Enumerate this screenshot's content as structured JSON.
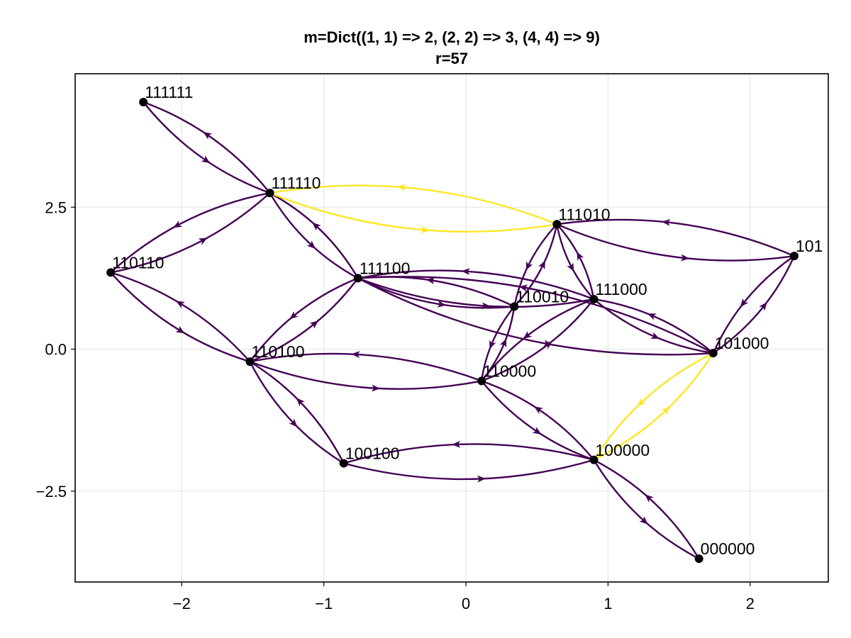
{
  "chart_data": {
    "type": "network",
    "title": "m=Dict((1, 1) => 2, (2, 2) => 3, (4, 4) => 9)",
    "subtitle": "r=57",
    "xlabel": "",
    "ylabel": "",
    "xlim": [
      -2.75,
      2.55
    ],
    "ylim": [
      -4.1,
      4.85
    ],
    "x_ticks": [
      -2,
      -1,
      0,
      1,
      2
    ],
    "x_tick_labels": [
      "−2",
      "−1",
      "0",
      "1",
      "2"
    ],
    "y_ticks": [
      -2.5,
      0.0,
      2.5
    ],
    "y_tick_labels": [
      "−2.5",
      "0.0",
      "2.5"
    ],
    "grid": true,
    "colors": {
      "low": "#440154",
      "high": "#fde725",
      "node": "#000000",
      "grid": "#e6e6e6"
    },
    "nodes": [
      {
        "id": "111111",
        "label": "111111",
        "x": -2.27,
        "y": 4.35
      },
      {
        "id": "111110",
        "label": "111110",
        "x": -1.38,
        "y": 2.75
      },
      {
        "id": "110110",
        "label": "110110",
        "x": -2.5,
        "y": 1.35
      },
      {
        "id": "111100",
        "label": "111100",
        "x": -0.76,
        "y": 1.25
      },
      {
        "id": "110100",
        "label": "110100",
        "x": -1.52,
        "y": -0.22
      },
      {
        "id": "100100",
        "label": "100100",
        "x": -0.86,
        "y": -2.01
      },
      {
        "id": "111010",
        "label": "111010",
        "x": 0.64,
        "y": 2.2
      },
      {
        "id": "110010",
        "label": "110010",
        "x": 0.34,
        "y": 0.75
      },
      {
        "id": "111000",
        "label": "111000",
        "x": 0.9,
        "y": 0.88
      },
      {
        "id": "110000",
        "label": "110000",
        "x": 0.11,
        "y": -0.56
      },
      {
        "id": "101010",
        "label": "101",
        "x": 2.31,
        "y": 1.64
      },
      {
        "id": "101000",
        "label": "101000",
        "x": 1.74,
        "y": -0.07
      },
      {
        "id": "100000",
        "label": "100000",
        "x": 0.9,
        "y": -1.95
      },
      {
        "id": "000000",
        "label": "000000",
        "x": 1.64,
        "y": -3.69
      }
    ],
    "edges": [
      {
        "a": "111111",
        "b": "111110",
        "weight": 0
      },
      {
        "a": "111110",
        "b": "110110",
        "weight": 0
      },
      {
        "a": "111110",
        "b": "111100",
        "weight": 0
      },
      {
        "a": "111110",
        "b": "111010",
        "weight": 1
      },
      {
        "a": "110110",
        "b": "110100",
        "weight": 0
      },
      {
        "a": "111100",
        "b": "110100",
        "weight": 0
      },
      {
        "a": "111100",
        "b": "110010",
        "weight": 0
      },
      {
        "a": "111100",
        "b": "111000",
        "weight": 0
      },
      {
        "a": "111100",
        "b": "101000",
        "weight": 0
      },
      {
        "a": "110100",
        "b": "100100",
        "weight": 0
      },
      {
        "a": "110100",
        "b": "110000",
        "weight": 0
      },
      {
        "a": "100100",
        "b": "100000",
        "weight": 0
      },
      {
        "a": "111010",
        "b": "110010",
        "weight": 0
      },
      {
        "a": "111010",
        "b": "111000",
        "weight": 0
      },
      {
        "a": "111010",
        "b": "101010",
        "weight": 0
      },
      {
        "a": "110010",
        "b": "110000",
        "weight": 0
      },
      {
        "a": "111000",
        "b": "110000",
        "weight": 0
      },
      {
        "a": "111000",
        "b": "101000",
        "weight": 0
      },
      {
        "a": "101010",
        "b": "101000",
        "weight": 0
      },
      {
        "a": "110000",
        "b": "100000",
        "weight": 0
      },
      {
        "a": "101000",
        "b": "100000",
        "weight": 1
      },
      {
        "a": "100000",
        "b": "000000",
        "weight": 0
      }
    ]
  }
}
